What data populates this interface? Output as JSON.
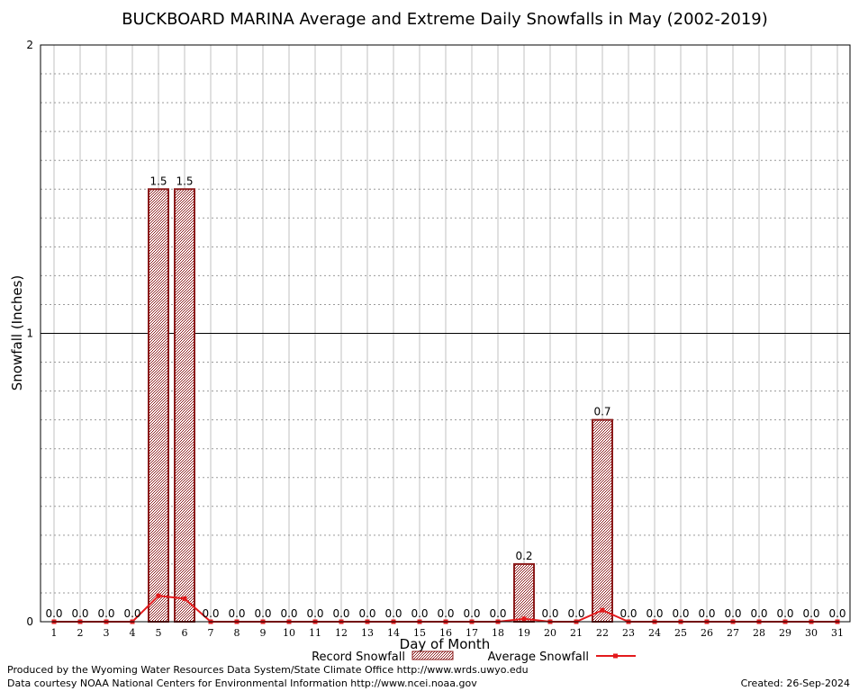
{
  "chart_data": {
    "type": "bar",
    "title": "BUCKBOARD MARINA Average and Extreme Daily Snowfalls in May (2002-2019)",
    "xlabel": "Day of Month",
    "ylabel": "Snowfall (Inches)",
    "ylim": [
      0,
      2
    ],
    "yticks": [
      "0",
      "1",
      "2"
    ],
    "grid": true,
    "legend_placement": "bottom-center",
    "categories": [
      "1",
      "2",
      "3",
      "4",
      "5",
      "6",
      "7",
      "8",
      "9",
      "10",
      "11",
      "12",
      "13",
      "14",
      "15",
      "16",
      "17",
      "18",
      "19",
      "20",
      "21",
      "22",
      "23",
      "24",
      "25",
      "26",
      "27",
      "28",
      "29",
      "30",
      "31"
    ],
    "series": [
      {
        "name": "Record Snowfall",
        "kind": "bar",
        "color": "#8b1a1a",
        "values": [
          0,
          0,
          0,
          0,
          1.5,
          1.5,
          0,
          0,
          0,
          0,
          0,
          0,
          0,
          0,
          0,
          0,
          0,
          0,
          0.2,
          0,
          0,
          0.7,
          0,
          0,
          0,
          0,
          0,
          0,
          0,
          0,
          0
        ],
        "labels": [
          "0.0",
          "0.0",
          "0.0",
          "0.0",
          "1.5",
          "1.5",
          "0.0",
          "0.0",
          "0.0",
          "0.0",
          "0.0",
          "0.0",
          "0.0",
          "0.0",
          "0.0",
          "0.0",
          "0.0",
          "0.0",
          "0.2",
          "0.0",
          "0.0",
          "0.7",
          "0.0",
          "0.0",
          "0.0",
          "0.0",
          "0.0",
          "0.0",
          "0.0",
          "0.0",
          "0.0"
        ]
      },
      {
        "name": "Average Snowfall",
        "kind": "line",
        "color": "#e31a1c",
        "values": [
          0,
          0,
          0,
          0,
          0.09,
          0.08,
          0,
          0,
          0,
          0,
          0,
          0,
          0,
          0,
          0,
          0,
          0,
          0,
          0.01,
          0,
          0,
          0.04,
          0,
          0,
          0,
          0,
          0,
          0,
          0,
          0,
          0
        ]
      }
    ]
  },
  "footer": {
    "produced_by": "Produced by the Wyoming Water Resources Data System/State Climate Office http://www.wrds.uwyo.edu",
    "courtesy": "Data courtesy NOAA National Centers for Environmental Information http://www.ncei.noaa.gov",
    "created": "Created:  26-Sep-2024"
  }
}
